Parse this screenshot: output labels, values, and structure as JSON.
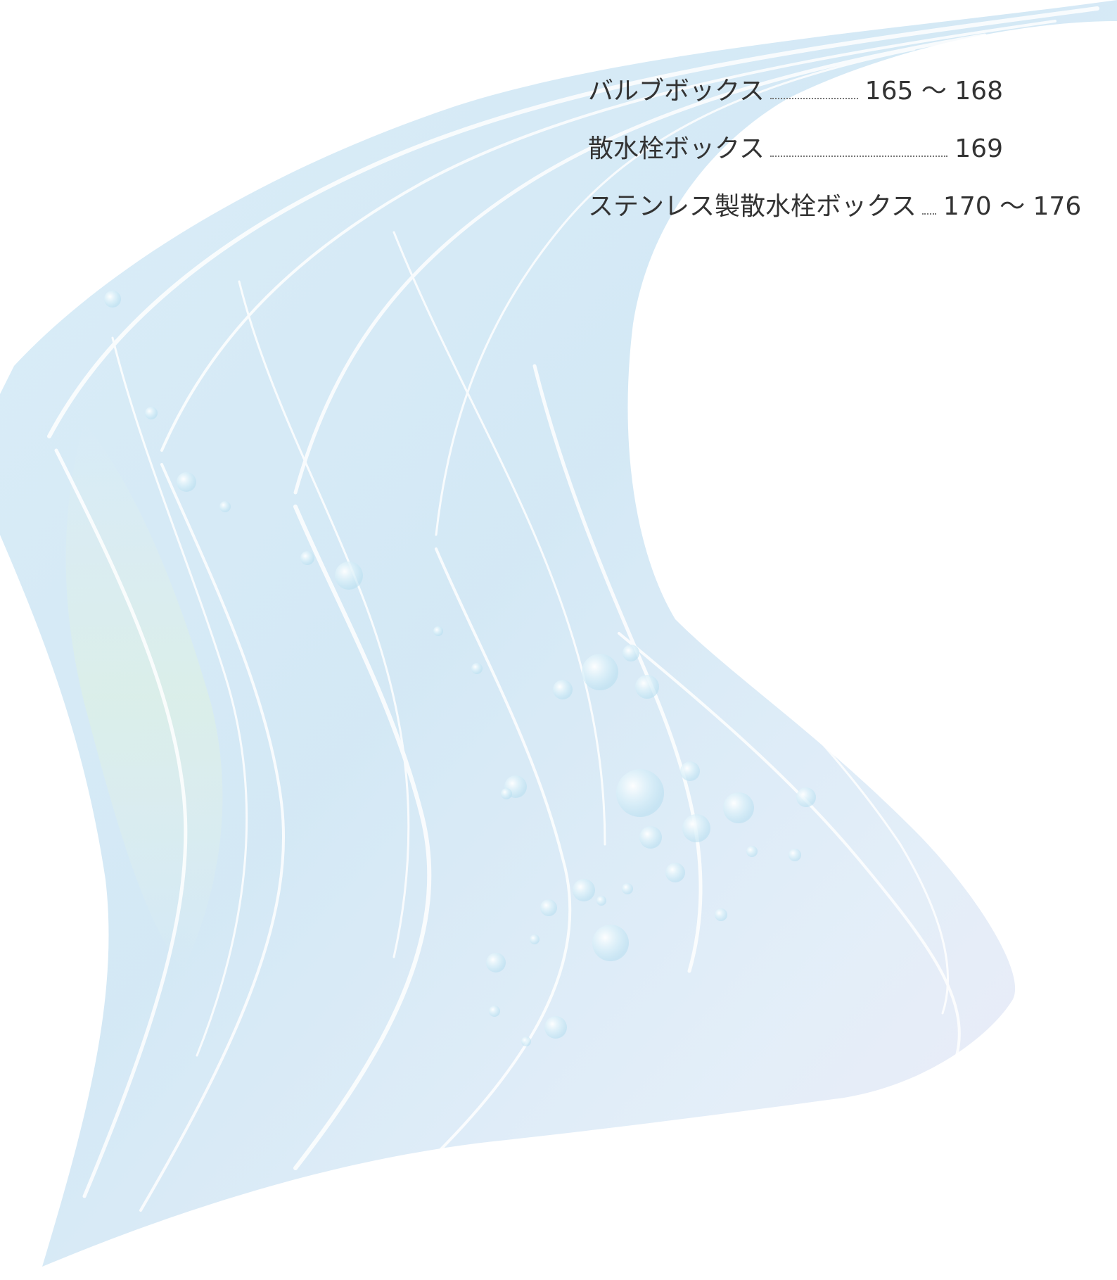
{
  "toc": {
    "items": [
      {
        "title": "バルブボックス",
        "pages": "165 ～ 168"
      },
      {
        "title": "散水栓ボックス",
        "pages": "169"
      },
      {
        "title": "ステンレス製散水栓ボックス",
        "pages": "170 ～ 176"
      }
    ]
  },
  "decoration": {
    "wave_colors": [
      "#d4e9f6",
      "#c5e2f3",
      "#e3eff9",
      "#dfeee8",
      "#e8e6f3"
    ],
    "bubble_color": "#bfe3f3"
  }
}
